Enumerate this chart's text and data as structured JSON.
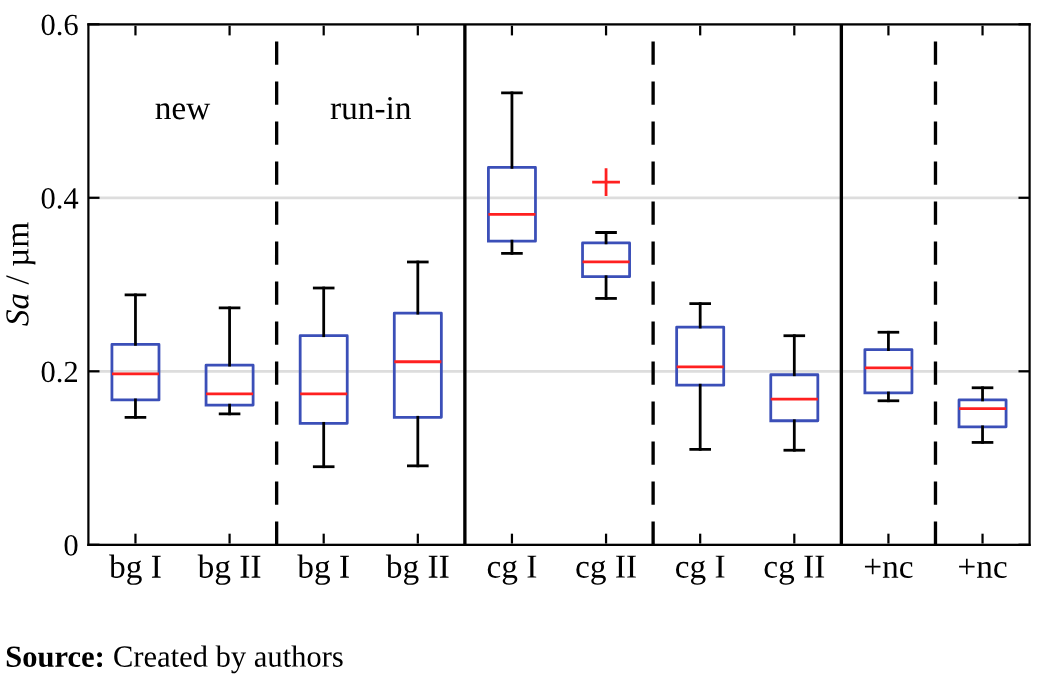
{
  "chart_data": {
    "type": "box",
    "ylabel": "Sa / µm",
    "categories": [
      "bg I",
      "bg II",
      "bg I",
      "bg II",
      "cg I",
      "cg II",
      "cg I",
      "cg II",
      "+nc",
      "+nc"
    ],
    "boxes": [
      {
        "low": 0.147,
        "q1": 0.167,
        "median": 0.197,
        "q3": 0.231,
        "high": 0.288
      },
      {
        "low": 0.151,
        "q1": 0.161,
        "median": 0.174,
        "q3": 0.207,
        "high": 0.273
      },
      {
        "low": 0.09,
        "q1": 0.14,
        "median": 0.174,
        "q3": 0.241,
        "high": 0.296
      },
      {
        "low": 0.091,
        "q1": 0.147,
        "median": 0.211,
        "q3": 0.267,
        "high": 0.326
      },
      {
        "low": 0.336,
        "q1": 0.35,
        "median": 0.381,
        "q3": 0.435,
        "high": 0.521
      },
      {
        "low": 0.284,
        "q1": 0.309,
        "median": 0.326,
        "q3": 0.348,
        "high": 0.36,
        "outliers": [
          0.418
        ]
      },
      {
        "low": 0.11,
        "q1": 0.184,
        "median": 0.205,
        "q3": 0.251,
        "high": 0.278
      },
      {
        "low": 0.109,
        "q1": 0.143,
        "median": 0.168,
        "q3": 0.196,
        "high": 0.241
      },
      {
        "low": 0.166,
        "q1": 0.175,
        "median": 0.204,
        "q3": 0.225,
        "high": 0.245
      },
      {
        "low": 0.118,
        "q1": 0.136,
        "median": 0.157,
        "q3": 0.167,
        "high": 0.181
      }
    ],
    "color": "#3b4fb8",
    "ylim": [
      0,
      0.6
    ],
    "yticks": [
      0,
      0.2,
      0.4,
      0.6
    ],
    "grid": "y",
    "annotations": [
      "new",
      "run-in",
      "Source: Created by authors"
    ]
  }
}
